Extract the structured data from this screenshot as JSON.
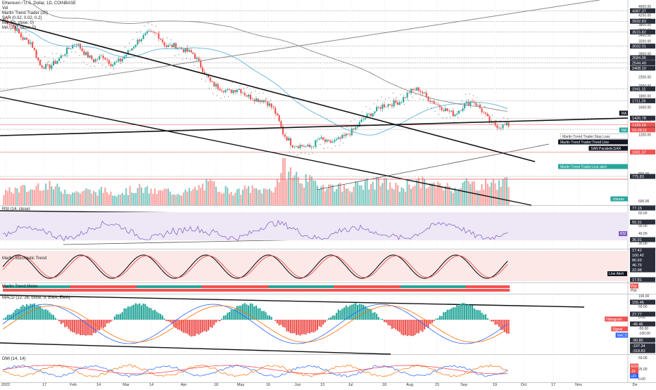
{
  "chart_data": [
    {
      "type": "candlestick",
      "pane": "main",
      "title": "Ethereum / U.S. Dollar, 1D, COINBASE",
      "legend_lines": [
        "Ethereum / U.S. Dollar, 1D, COINBASE",
        "Vol",
        "Martin Trend Trader (35)",
        "SAR (0.02, 0.02, 0.2)",
        "MA (50, close, 0)",
        "MA (200, close, 0)"
      ],
      "y_axis_ticks": [
        4600,
        4400,
        4200,
        4000,
        3800,
        3600,
        3400,
        3200,
        3000,
        2800,
        2600,
        2400,
        2200,
        2000,
        1800,
        1600,
        1400,
        1200,
        1000,
        800,
        600
      ],
      "price_labels": [
        {
          "text": "4387.37",
          "value": 4387.37,
          "style": "dark"
        },
        {
          "text": "3932.83",
          "value": 3932.83,
          "style": "dark"
        },
        {
          "text": "3515.82",
          "value": 3515.82,
          "style": "dark"
        },
        {
          "text": "3032.01",
          "value": 3032.01,
          "style": "dark"
        },
        {
          "text": "2684.95",
          "value": 2684.95,
          "style": "dark"
        },
        {
          "text": "2544.49",
          "value": 2544.49,
          "style": "dark"
        },
        {
          "text": "2408.10",
          "value": 2408.1,
          "style": "dark"
        },
        {
          "text": "1941.11",
          "value": 1941.11,
          "style": "dark"
        },
        {
          "text": "1711.26",
          "value": 1711.26,
          "style": "dark"
        },
        {
          "text": "1426.78",
          "value": 1426.78,
          "style": "dark"
        },
        {
          "text": "1329.60",
          "value": 1329.6,
          "style": "red"
        },
        {
          "text": "1269.54",
          "value": 1269.54,
          "style": "dark"
        },
        {
          "text": "1001.07",
          "value": 1001.07,
          "style": "red"
        },
        {
          "text": "775.83",
          "value": 775.83,
          "style": "dark"
        }
      ],
      "countdown": "03:28:11",
      "side_labels": [
        {
          "text": "MA",
          "style": "black"
        },
        {
          "text": "MA",
          "style": "teal"
        },
        {
          "text": "Martin Trend Trader:Stop Loss",
          "style": "white"
        },
        {
          "text": "Martin Trend Trader:Trend Line",
          "style": "black"
        },
        {
          "text": "SAR:ParabolicSAR",
          "style": "black"
        },
        {
          "text": "Martin Trend Trader:Line alert",
          "style": "teal"
        },
        {
          "text": "Volume",
          "style": "teal"
        }
      ],
      "price_series_approx": [
        4000,
        3780,
        3300,
        3150,
        2480,
        2430,
        2620,
        2900,
        3150,
        2800,
        2600,
        2740,
        2500,
        2620,
        2900,
        3250,
        3460,
        3450,
        3020,
        3050,
        2910,
        2800,
        2400,
        2050,
        1960,
        1880,
        1950,
        1800,
        1740,
        1720,
        1550,
        1210,
        1080,
        1070,
        1050,
        1150,
        1100,
        1130,
        1190,
        1280,
        1430,
        1520,
        1630,
        1660,
        1700,
        1880,
        1940,
        1760,
        1650,
        1560,
        1480,
        1630,
        1720,
        1550,
        1350,
        1310,
        1330
      ],
      "volume_approx": [
        0.3,
        0.35,
        0.4,
        0.35,
        0.5,
        0.45,
        0.4,
        0.35,
        0.3,
        0.35,
        0.3,
        0.35,
        0.3,
        0.3,
        0.35,
        0.4,
        0.35,
        0.3,
        0.35,
        0.3,
        0.3,
        0.35,
        0.45,
        0.5,
        0.4,
        0.35,
        0.3,
        0.4,
        0.35,
        0.35,
        0.4,
        0.9,
        0.75,
        0.6,
        0.55,
        0.5,
        0.45,
        0.45,
        0.4,
        0.45,
        0.5,
        0.5,
        0.55,
        0.45,
        0.4,
        0.5,
        0.55,
        0.5,
        0.45,
        0.45,
        0.4,
        0.55,
        0.5,
        0.45,
        0.55,
        0.5,
        0.6
      ]
    },
    {
      "type": "line",
      "pane": "rsi",
      "title": "RSI (14, close)",
      "y_axis_ticks": [
        60,
        50,
        40,
        30
      ],
      "price_labels": [
        {
          "text": "77.15",
          "style": "dark"
        },
        {
          "text": "55.31",
          "style": "dark"
        },
        {
          "text": "36.91",
          "style": "dark"
        }
      ],
      "side_labels": [
        {
          "text": "RSI",
          "style": "purple"
        }
      ]
    },
    {
      "type": "line",
      "pane": "stochastic",
      "title": "Martin Stochastic Trend",
      "price_labels": [
        {
          "text": "17.42",
          "style": "dark"
        },
        {
          "text": "100.42",
          "style": "dark"
        },
        {
          "text": "80.69",
          "style": "dark"
        },
        {
          "text": "46.76",
          "style": "dark"
        },
        {
          "text": "22.98",
          "style": "dark"
        },
        {
          "text": "17.81",
          "style": "dark"
        }
      ],
      "side_labels": [
        {
          "text": "Line Alert",
          "style": "black"
        }
      ]
    },
    {
      "type": "bar",
      "pane": "trend_meter",
      "title": "Martin Trend Meter",
      "side_labels": [
        {
          "text": "Plot",
          "style": "red"
        },
        {
          "text": "Plot",
          "style": "plain"
        }
      ]
    },
    {
      "type": "bar",
      "pane": "macd",
      "title": "MACD (12, 26, close, 9, EMA, EMA)",
      "y_axis_ticks": [
        100,
        50,
        0,
        -50,
        -100
      ],
      "price_labels": [
        {
          "text": "155.46",
          "style": "dark"
        },
        {
          "text": "27.77",
          "style": "dark"
        },
        {
          "text": "-46.46",
          "style": "dark"
        },
        {
          "text": "-90.80",
          "style": "dark"
        },
        {
          "text": "-197.34",
          "style": "dark"
        },
        {
          "text": "-318.83",
          "style": "dark"
        }
      ],
      "side_labels": [
        {
          "text": "Histogram",
          "style": "red"
        },
        {
          "text": "Signal",
          "style": "red"
        },
        {
          "text": "MACD",
          "style": "blue"
        }
      ]
    },
    {
      "type": "line",
      "pane": "dmi",
      "title": "DMI (14, 14)",
      "y_axis_ticks": [
        50,
        25,
        0
      ],
      "side_labels": [
        {
          "text": "ADX",
          "style": "red"
        },
        {
          "text": "-DI",
          "style": "red"
        },
        {
          "text": "+DI",
          "style": "blue"
        }
      ]
    }
  ],
  "x_axis": [
    "2022",
    "17",
    "Feb",
    "14",
    "Mar",
    "14",
    "Apr",
    "18",
    "May",
    "16",
    "Jun",
    "13",
    "Jul",
    "18",
    "Aug",
    "15",
    "Sep",
    "19",
    "Oct",
    "17",
    "Nov",
    "De"
  ],
  "colors": {
    "up": "#26a69a",
    "down": "#ef5350",
    "volume_up": "#80cbc4",
    "volume_down": "#f8a5a2",
    "ma50": "#5fb3d9",
    "ma200": "#888888",
    "rsi_line": "#7e57c2",
    "rsi_band": "#ede7f6",
    "macd_line": "#2962ff",
    "signal_line": "#ff6d00",
    "plus_di": "#2962ff",
    "minus_di": "#ff6d00",
    "adx": "#f23645"
  }
}
